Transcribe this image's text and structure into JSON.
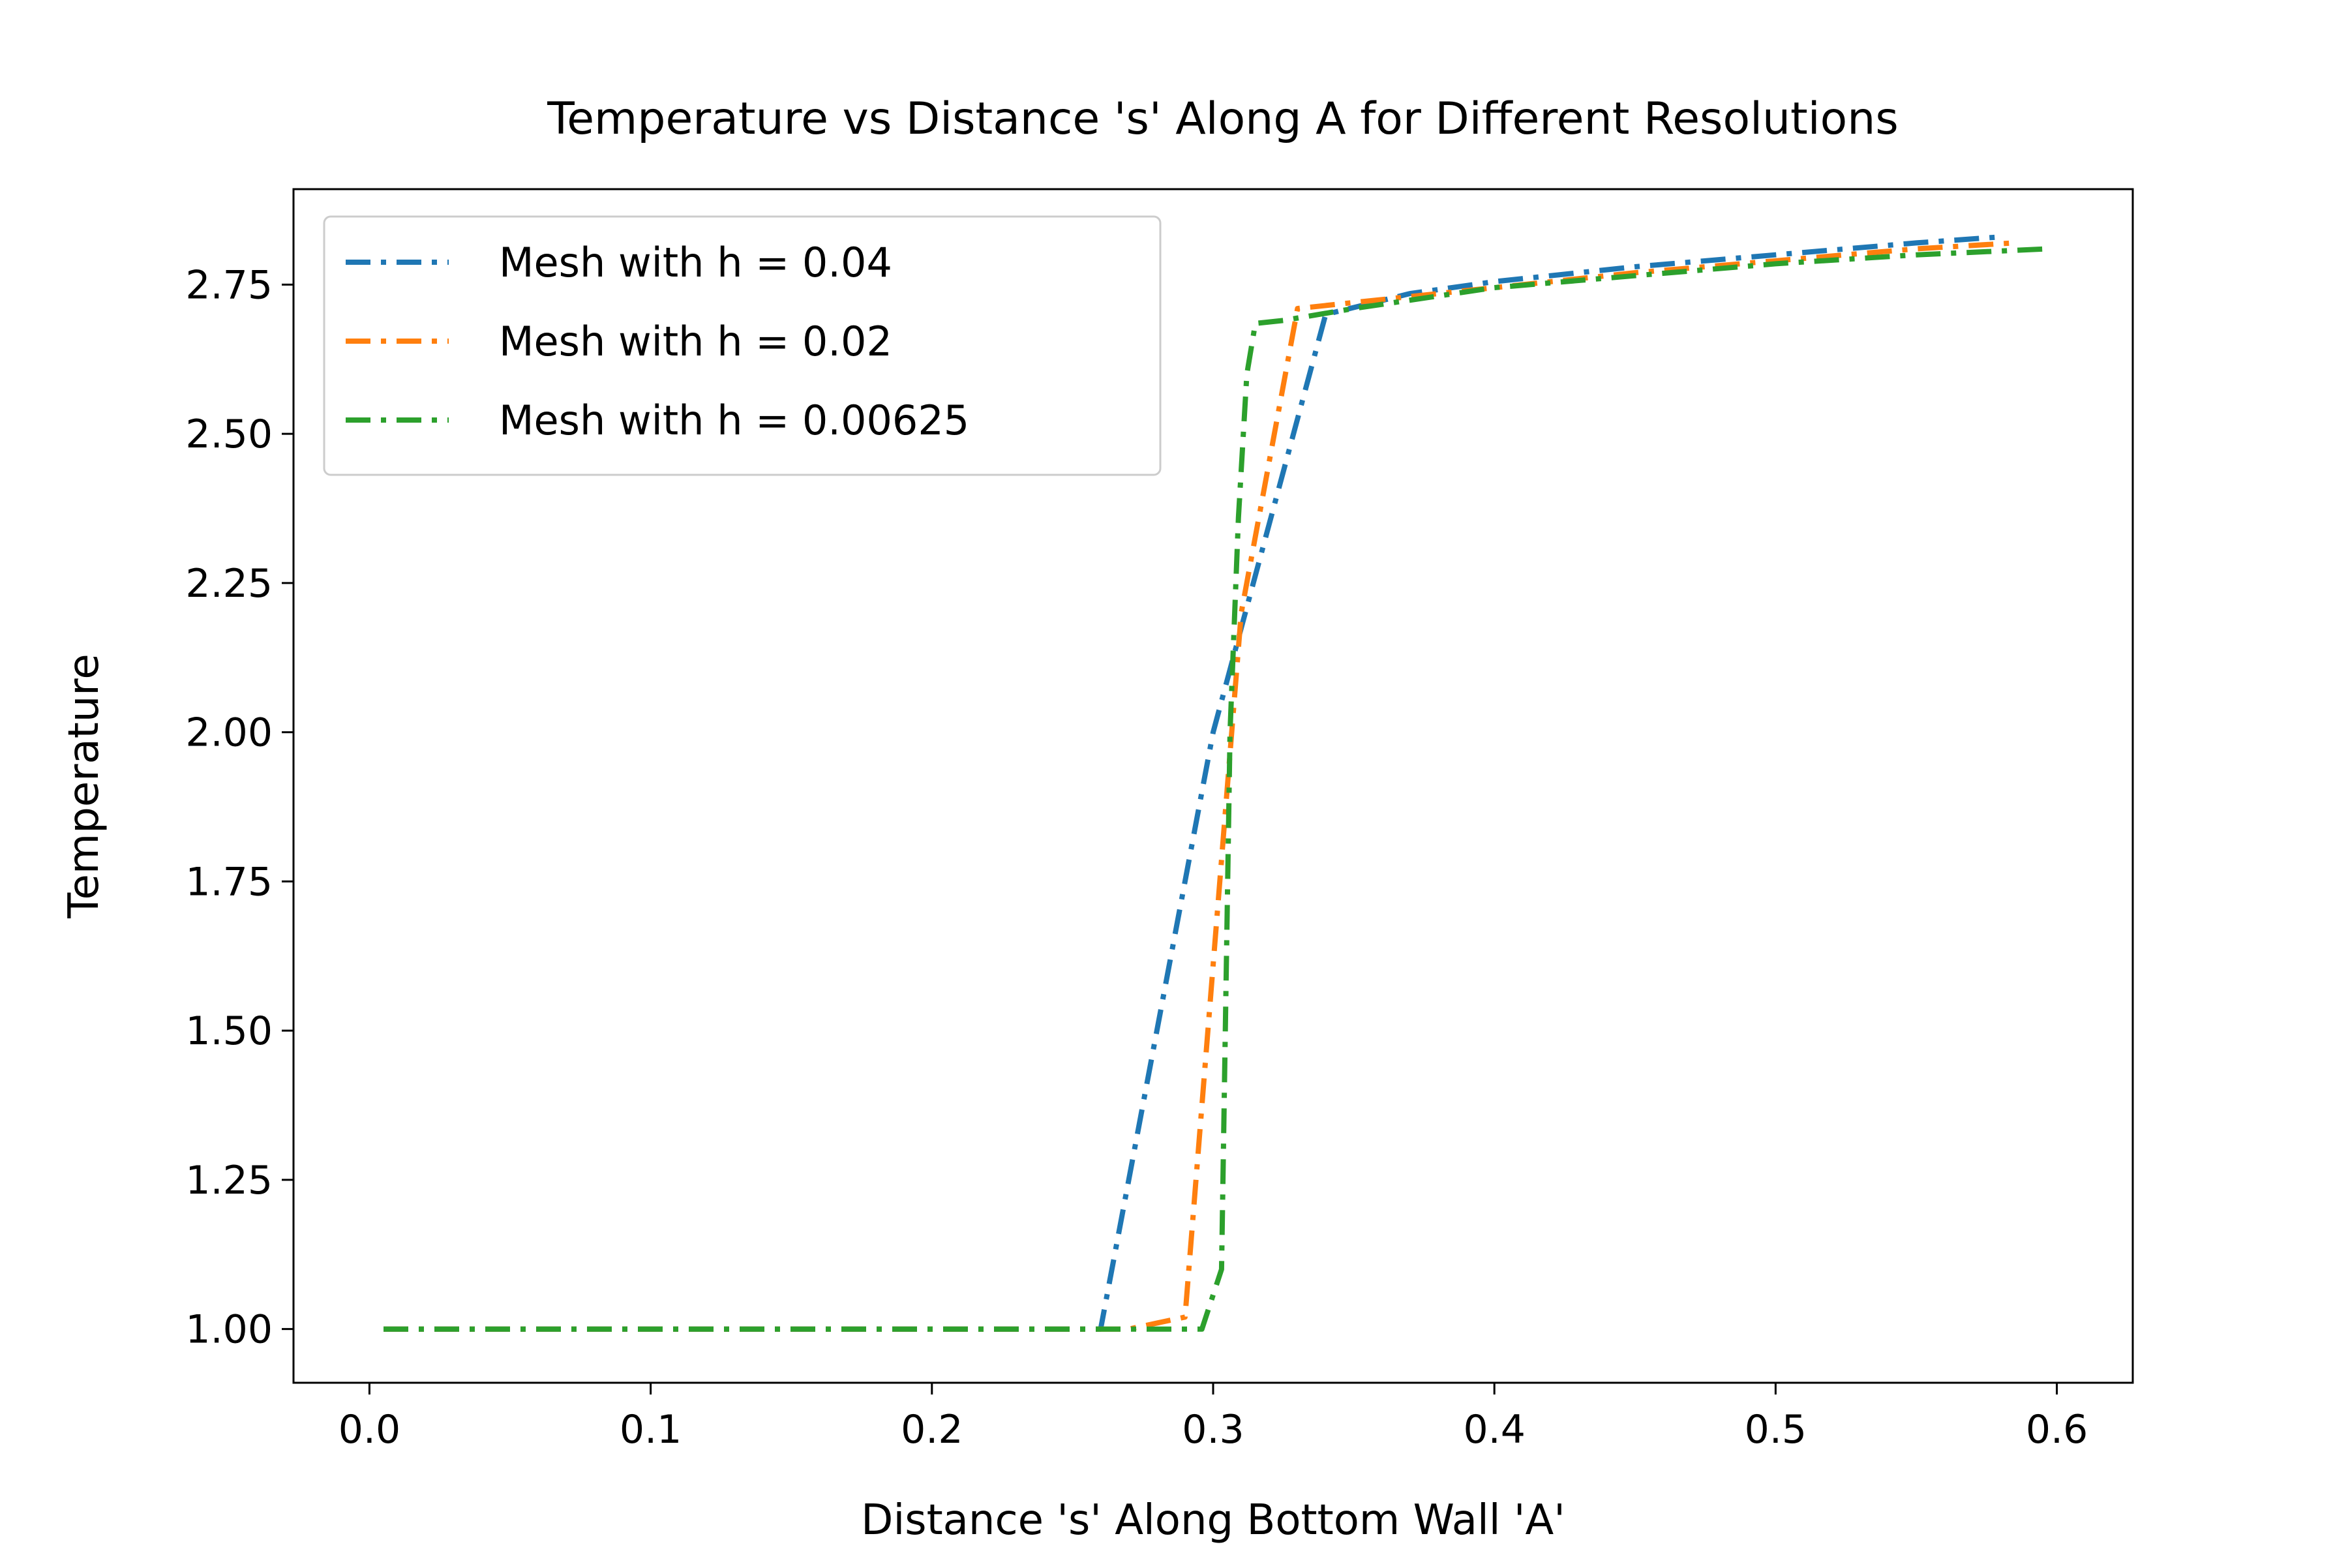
{
  "chart_data": {
    "type": "line",
    "title": "Temperature vs Distance 's' Along A for Different Resolutions",
    "xlabel": "Distance 's' Along Bottom Wall 'A'",
    "ylabel": "Temperature",
    "xlim": [
      -0.027,
      0.627
    ],
    "ylim": [
      0.91,
      2.91
    ],
    "xticks": [
      0.0,
      0.1,
      0.2,
      0.3,
      0.4,
      0.5,
      0.6
    ],
    "xtick_labels": [
      "0.0",
      "0.1",
      "0.2",
      "0.3",
      "0.4",
      "0.5",
      "0.6"
    ],
    "yticks": [
      1.0,
      1.25,
      1.5,
      1.75,
      2.0,
      2.25,
      2.5,
      2.75
    ],
    "ytick_labels": [
      "1.00",
      "1.25",
      "1.50",
      "1.75",
      "2.00",
      "2.25",
      "2.50",
      "2.75"
    ],
    "grid": false,
    "legend_position": "upper-left",
    "line_style": "dash-dot",
    "series": [
      {
        "name": "Mesh with h = 0.04",
        "color": "#1f77b4",
        "x": [
          0.005,
          0.05,
          0.1,
          0.15,
          0.2,
          0.26,
          0.3,
          0.34,
          0.37,
          0.4,
          0.45,
          0.5,
          0.55,
          0.58
        ],
        "y": [
          1.0,
          1.0,
          1.0,
          1.0,
          1.0,
          1.0,
          2.0,
          2.7,
          2.735,
          2.755,
          2.78,
          2.8,
          2.82,
          2.83
        ]
      },
      {
        "name": "Mesh with h = 0.02",
        "color": "#ff7f0e",
        "x": [
          0.005,
          0.05,
          0.1,
          0.15,
          0.2,
          0.25,
          0.27,
          0.29,
          0.31,
          0.33,
          0.35,
          0.4,
          0.45,
          0.5,
          0.55,
          0.585
        ],
        "y": [
          1.0,
          1.0,
          1.0,
          1.0,
          1.0,
          1.0,
          1.0,
          1.02,
          2.2,
          2.71,
          2.72,
          2.745,
          2.77,
          2.79,
          2.81,
          2.82
        ]
      },
      {
        "name": "Mesh with h = 0.00625",
        "color": "#2ca02c",
        "x": [
          0.005,
          0.05,
          0.1,
          0.15,
          0.2,
          0.25,
          0.296,
          0.303,
          0.306,
          0.309,
          0.312,
          0.315,
          0.325,
          0.35,
          0.4,
          0.45,
          0.5,
          0.55,
          0.597
        ],
        "y": [
          1.0,
          1.0,
          1.0,
          1.0,
          1.0,
          1.0,
          1.0,
          1.1,
          2.0,
          2.36,
          2.6,
          2.685,
          2.69,
          2.71,
          2.745,
          2.765,
          2.785,
          2.8,
          2.81
        ]
      }
    ]
  }
}
